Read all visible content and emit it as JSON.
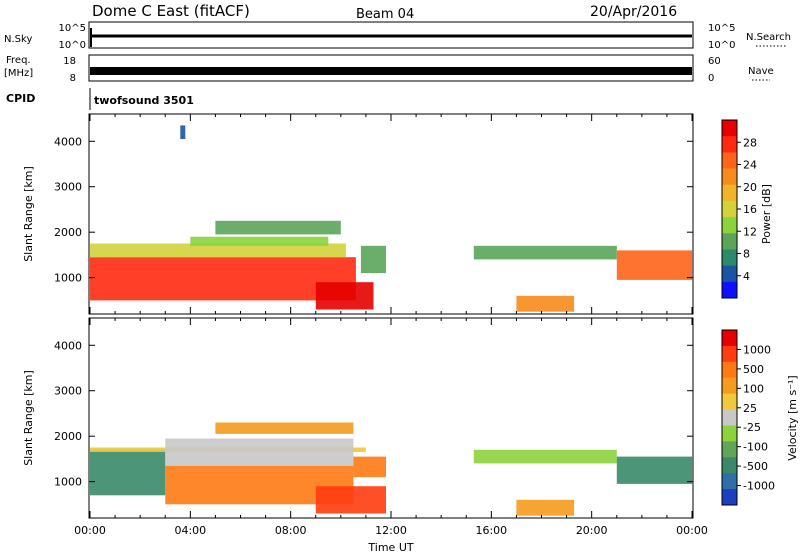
{
  "header": {
    "station": "Dome C East (fitACF)",
    "beam": "Beam 04",
    "date": "20/Apr/2016"
  },
  "panels": {
    "nsky_label": "N.Sky",
    "nsearch_label": "N.Search",
    "nsky_ticks": [
      "10^5",
      "10^0"
    ],
    "nsearch_ticks": [
      "10^5",
      "10^0"
    ],
    "freq_label_line1": "Freq.",
    "freq_label_line2": "[MHz]",
    "freq_ticks": [
      "18",
      "8"
    ],
    "nave_label": "Nave",
    "nave_ticks": [
      "60",
      "0"
    ],
    "cpid_label": "CPID",
    "cpid_value": "twofsound 3501"
  },
  "chart_data": [
    {
      "type": "heatmap",
      "name": "power",
      "xlabel": "",
      "ylabel": "Slant Range [km]",
      "xlim": [
        "00:00",
        "24:00"
      ],
      "ylim": [
        200,
        4600
      ],
      "y_ticks": [
        1000,
        2000,
        3000,
        4000
      ],
      "colorbar_label": "Power [dB]",
      "colorbar_ticks": [
        "4",
        "8",
        "12",
        "16",
        "20",
        "24",
        "28"
      ],
      "colorbar_colors": [
        "#1010ff",
        "#1a55a5",
        "#2a8a6a",
        "#5aa55a",
        "#8cd23c",
        "#d2d23c",
        "#f0b428",
        "#f58c1e",
        "#ff641a",
        "#ff2a10",
        "#e60000"
      ],
      "cells": [
        {
          "t0": 0.0,
          "t1": 10.6,
          "r0": 500,
          "r1": 1450,
          "level": 9
        },
        {
          "t0": 0.0,
          "t1": 10.2,
          "r0": 1450,
          "r1": 1750,
          "level": 5
        },
        {
          "t0": 4.0,
          "t1": 9.5,
          "r0": 1700,
          "r1": 1900,
          "level": 4
        },
        {
          "t0": 5.0,
          "t1": 10.0,
          "r0": 1950,
          "r1": 2250,
          "level": 3
        },
        {
          "t0": 9.0,
          "t1": 11.3,
          "r0": 300,
          "r1": 900,
          "level": 10
        },
        {
          "t0": 10.8,
          "t1": 11.8,
          "r0": 1100,
          "r1": 1700,
          "level": 3
        },
        {
          "t0": 15.3,
          "t1": 21.0,
          "r0": 1400,
          "r1": 1700,
          "level": 3
        },
        {
          "t0": 17.0,
          "t1": 19.3,
          "r0": 250,
          "r1": 600,
          "level": 7
        },
        {
          "t0": 21.0,
          "t1": 24.0,
          "r0": 950,
          "r1": 1600,
          "level": 8
        },
        {
          "t0": 3.6,
          "t1": 3.8,
          "r0": 4050,
          "r1": 4350,
          "level": 1
        }
      ]
    },
    {
      "type": "heatmap",
      "name": "velocity",
      "xlabel": "Time UT",
      "ylabel": "Slant Range [km]",
      "xlim": [
        "00:00",
        "24:00"
      ],
      "x_ticks": [
        "00:00",
        "04:00",
        "08:00",
        "12:00",
        "16:00",
        "20:00",
        "00:00"
      ],
      "ylim": [
        200,
        4600
      ],
      "y_ticks": [
        1000,
        2000,
        3000,
        4000
      ],
      "colorbar_label": "Velocity [m s⁻¹]",
      "colorbar_ticks": [
        "1000",
        "500",
        "100",
        "25",
        "-25",
        "-100",
        "-500",
        "-1000"
      ],
      "colorbar_colors": [
        "#1a3fbf",
        "#2e6fa8",
        "#3a8a6a",
        "#5fa55a",
        "#8cd23c",
        "#c8c8c8",
        "#f0c83c",
        "#f59b1e",
        "#ff7a14",
        "#ff3c10",
        "#e60000"
      ],
      "cells": [
        {
          "t0": 0.0,
          "t1": 3.0,
          "r0": 700,
          "r1": 1700,
          "level": 2
        },
        {
          "t0": 3.0,
          "t1": 10.5,
          "r0": 500,
          "r1": 1350,
          "level": 8
        },
        {
          "t0": 0.0,
          "t1": 11.0,
          "r0": 1650,
          "r1": 1750,
          "level": 6
        },
        {
          "t0": 3.0,
          "t1": 10.5,
          "r0": 1350,
          "r1": 1950,
          "level": 5
        },
        {
          "t0": 9.0,
          "t1": 11.8,
          "r0": 300,
          "r1": 900,
          "level": 9
        },
        {
          "t0": 10.5,
          "t1": 11.8,
          "r0": 1100,
          "r1": 1550,
          "level": 8
        },
        {
          "t0": 5.0,
          "t1": 10.5,
          "r0": 2050,
          "r1": 2300,
          "level": 7
        },
        {
          "t0": 15.3,
          "t1": 21.0,
          "r0": 1400,
          "r1": 1700,
          "level": 4
        },
        {
          "t0": 17.0,
          "t1": 19.3,
          "r0": 250,
          "r1": 600,
          "level": 7
        },
        {
          "t0": 21.0,
          "t1": 24.0,
          "r0": 950,
          "r1": 1550,
          "level": 2
        }
      ]
    }
  ]
}
